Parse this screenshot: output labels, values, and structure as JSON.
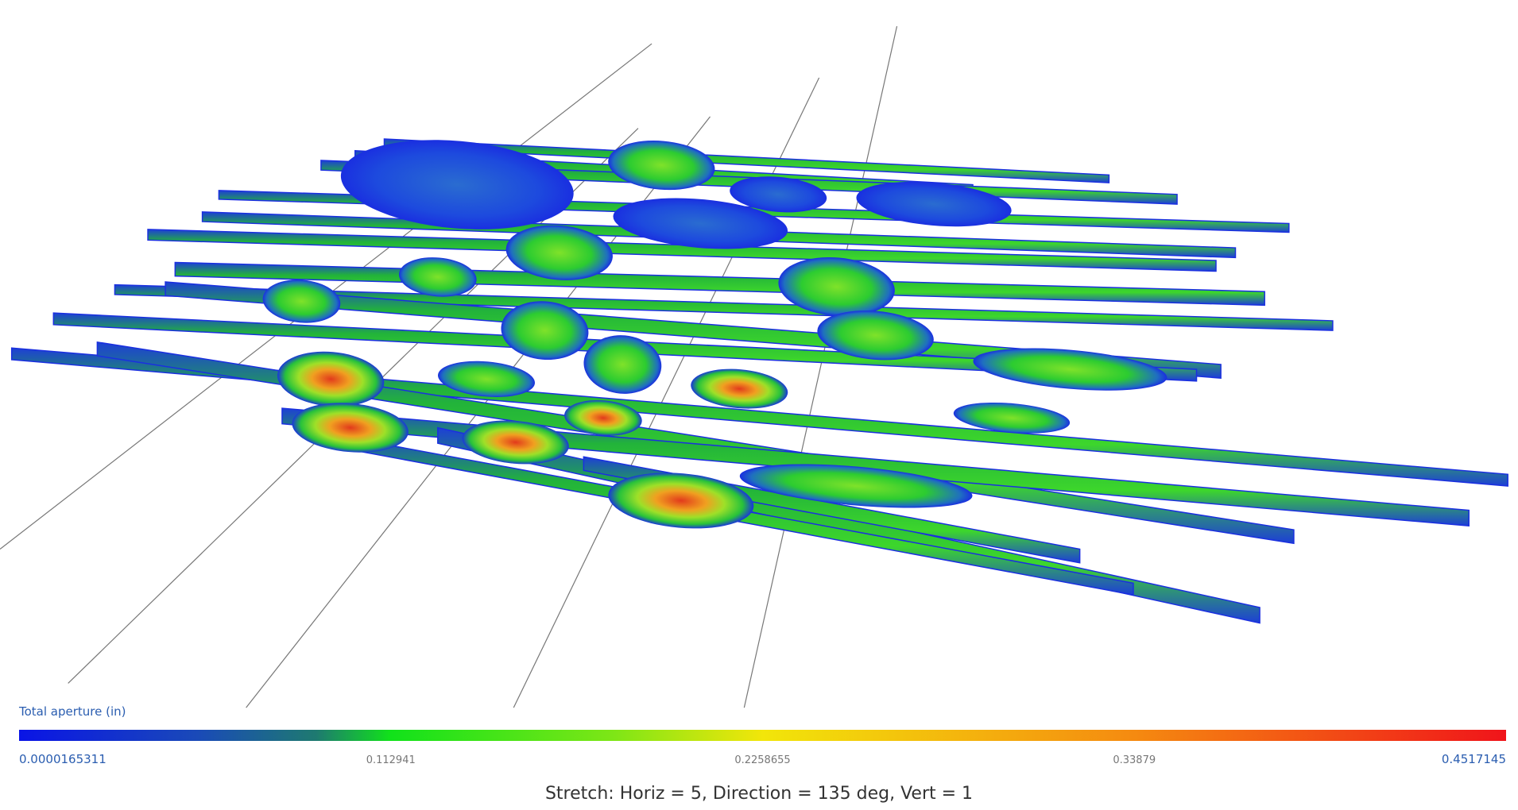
{
  "colorbar": {
    "title": "Total aperture (in)",
    "ticks": [
      1.65311e-05,
      0.112941,
      0.2258655,
      0.33879,
      0.4517145
    ]
  },
  "caption": "Stretch: Horiz = 5, Direction = 135 deg, Vert = 1"
}
